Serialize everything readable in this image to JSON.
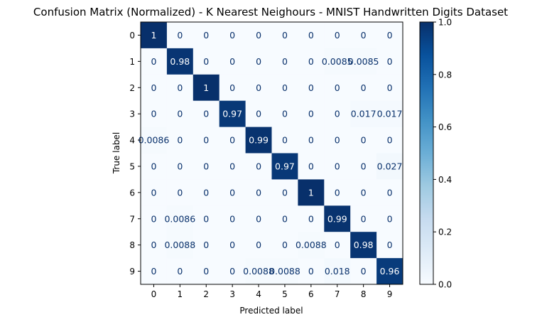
{
  "chart_data": {
    "type": "heatmap",
    "title": "Confusion Matrix (Normalized) - K Nearest Neighours - MNIST Handwritten Digits Dataset",
    "xlabel": "Predicted label",
    "ylabel": "True label",
    "x_categories": [
      "0",
      "1",
      "2",
      "3",
      "4",
      "5",
      "6",
      "7",
      "8",
      "9"
    ],
    "y_categories": [
      "0",
      "1",
      "2",
      "3",
      "4",
      "5",
      "6",
      "7",
      "8",
      "9"
    ],
    "values": [
      [
        1,
        0,
        0,
        0,
        0,
        0,
        0,
        0,
        0,
        0
      ],
      [
        0,
        0.98,
        0,
        0,
        0,
        0,
        0,
        0.0085,
        0.0085,
        0
      ],
      [
        0,
        0,
        1,
        0,
        0,
        0,
        0,
        0,
        0,
        0
      ],
      [
        0,
        0,
        0,
        0.97,
        0,
        0,
        0,
        0,
        0.017,
        0.017
      ],
      [
        0.0086,
        0,
        0,
        0,
        0.99,
        0,
        0,
        0,
        0,
        0
      ],
      [
        0,
        0,
        0,
        0,
        0,
        0.97,
        0,
        0,
        0,
        0.027
      ],
      [
        0,
        0,
        0,
        0,
        0,
        0,
        1,
        0,
        0,
        0
      ],
      [
        0,
        0.0086,
        0,
        0,
        0,
        0,
        0,
        0.99,
        0,
        0
      ],
      [
        0,
        0.0088,
        0,
        0,
        0,
        0,
        0.0088,
        0,
        0.98,
        0
      ],
      [
        0,
        0,
        0,
        0,
        0.0088,
        0.0088,
        0,
        0.018,
        0,
        0.96
      ]
    ],
    "colormap": "Blues",
    "colorbar": {
      "range": [
        0.0,
        1.0
      ],
      "ticks": [
        0.0,
        0.2,
        0.4,
        0.6,
        0.8,
        1.0
      ],
      "tick_labels": [
        "0.0",
        "0.2",
        "0.4",
        "0.6",
        "0.8",
        "1.0"
      ]
    },
    "colors": {
      "text_light": "#ffffff",
      "text_dark": "#08306b",
      "axis": "#000000"
    },
    "grid": false
  }
}
